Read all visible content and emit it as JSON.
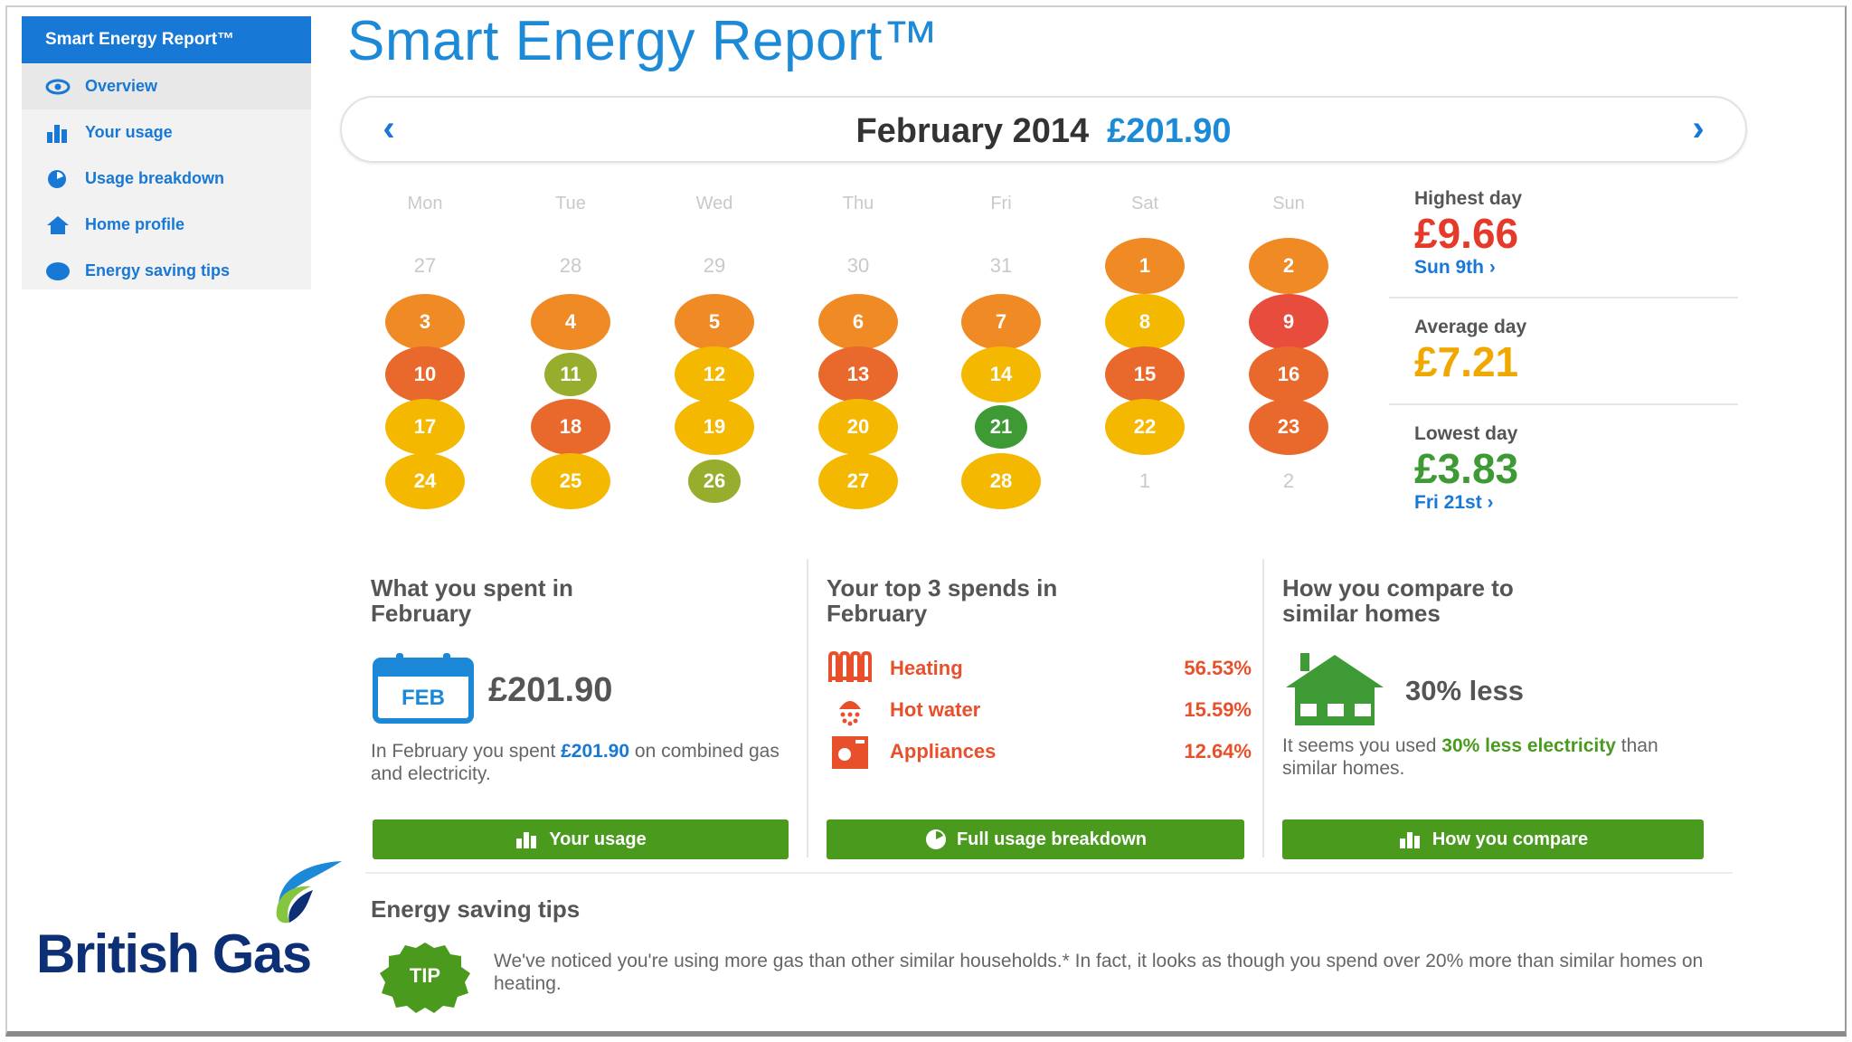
{
  "sidebar": {
    "header": "Smart Energy Report™",
    "items": [
      {
        "label": "Overview",
        "icon": "eye-icon"
      },
      {
        "label": "Your usage",
        "icon": "bar-chart-icon"
      },
      {
        "label": "Usage breakdown",
        "icon": "pie-chart-icon"
      },
      {
        "label": "Home profile",
        "icon": "house-icon"
      },
      {
        "label": "Energy saving tips",
        "icon": "bulb-icon"
      }
    ]
  },
  "brand": {
    "name": "British Gas"
  },
  "header": {
    "title": "Smart Energy Report™"
  },
  "month_nav": {
    "month": "February 2014",
    "total": "£201.90",
    "prev": "‹",
    "next": "›"
  },
  "calendar": {
    "weekdays": [
      "Mon",
      "Tue",
      "Wed",
      "Thu",
      "Fri",
      "Sat",
      "Sun"
    ],
    "colors": {
      "red": "#e84c3d",
      "dark_orange": "#e9692c",
      "orange": "#f08a24",
      "yellow": "#f5b800",
      "olive": "#96ad2e",
      "green": "#3d9a34"
    },
    "days": [
      {
        "label": "27",
        "muted": true
      },
      {
        "label": "28",
        "muted": true
      },
      {
        "label": "29",
        "muted": true
      },
      {
        "label": "30",
        "muted": true
      },
      {
        "label": "31",
        "muted": true
      },
      {
        "label": "1",
        "color": "orange"
      },
      {
        "label": "2",
        "color": "orange"
      },
      {
        "label": "3",
        "color": "orange"
      },
      {
        "label": "4",
        "color": "orange"
      },
      {
        "label": "5",
        "color": "orange"
      },
      {
        "label": "6",
        "color": "orange"
      },
      {
        "label": "7",
        "color": "orange"
      },
      {
        "label": "8",
        "color": "yellow"
      },
      {
        "label": "9",
        "color": "red"
      },
      {
        "label": "10",
        "color": "dark_orange"
      },
      {
        "label": "11",
        "color": "olive",
        "small": true
      },
      {
        "label": "12",
        "color": "yellow"
      },
      {
        "label": "13",
        "color": "dark_orange"
      },
      {
        "label": "14",
        "color": "yellow"
      },
      {
        "label": "15",
        "color": "dark_orange"
      },
      {
        "label": "16",
        "color": "dark_orange"
      },
      {
        "label": "17",
        "color": "yellow"
      },
      {
        "label": "18",
        "color": "dark_orange"
      },
      {
        "label": "19",
        "color": "yellow"
      },
      {
        "label": "20",
        "color": "yellow"
      },
      {
        "label": "21",
        "color": "green",
        "small": true
      },
      {
        "label": "22",
        "color": "yellow"
      },
      {
        "label": "23",
        "color": "dark_orange"
      },
      {
        "label": "24",
        "color": "yellow"
      },
      {
        "label": "25",
        "color": "yellow"
      },
      {
        "label": "26",
        "color": "olive",
        "small": true
      },
      {
        "label": "27",
        "color": "yellow"
      },
      {
        "label": "28",
        "color": "yellow"
      },
      {
        "label": "1",
        "muted": true
      },
      {
        "label": "2",
        "muted": true
      }
    ]
  },
  "stats": {
    "highest": {
      "label": "Highest day",
      "value": "£9.66",
      "link": "Sun 9th ›",
      "color": "#e53a2a"
    },
    "average": {
      "label": "Average day",
      "value": "£7.21",
      "color": "#f0a800"
    },
    "lowest": {
      "label": "Lowest day",
      "value": "£3.83",
      "link": "Fri 21st ›",
      "color": "#3d9a34"
    }
  },
  "spent": {
    "title": "What you spent in February",
    "calendar_icon_label": "FEB",
    "amount": "£201.90",
    "desc_pre": "In February you spent",
    "desc_amount": "£201.90",
    "desc_mid": "on",
    "desc_post": "combined gas and electricity.",
    "button": "Your usage"
  },
  "top3": {
    "title": "Your top 3 spends in February",
    "items": [
      {
        "name": "Heating",
        "pct": "56.53%",
        "icon": "radiator-icon"
      },
      {
        "name": "Hot water",
        "pct": "15.59%",
        "icon": "shower-icon"
      },
      {
        "name": "Appliances",
        "pct": "12.64%",
        "icon": "appliance-icon"
      }
    ],
    "button": "Full usage breakdown"
  },
  "compare": {
    "title": "How you compare to similar homes",
    "value": "30% less",
    "desc_pre": "It seems you used",
    "desc_highlight": "30% less electricity",
    "desc_post": "than similar homes.",
    "button": "How you compare"
  },
  "tips": {
    "title": "Energy saving tips",
    "badge": "TIP",
    "text": "We've noticed you're using more gas than other similar households.* In fact, it looks as though you spend over 20% more than similar homes on heating."
  }
}
